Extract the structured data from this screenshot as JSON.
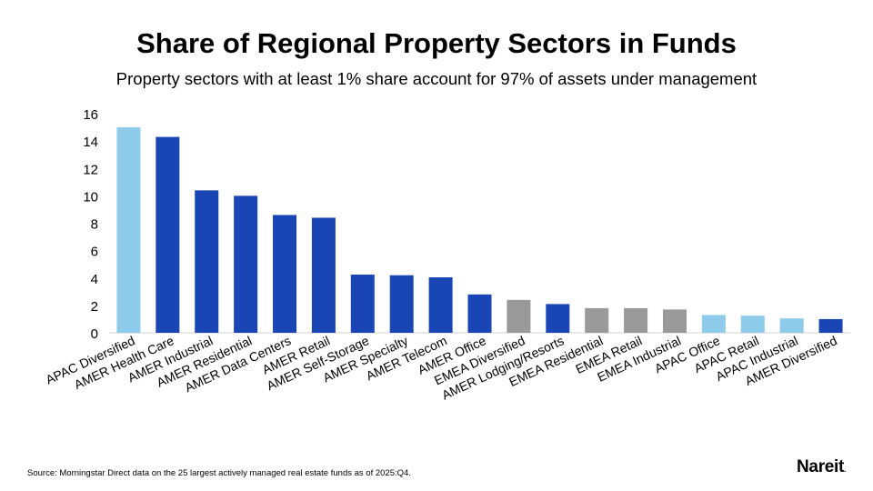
{
  "chart_data": {
    "type": "bar",
    "title": "Share of Regional Property Sectors in Funds",
    "subtitle": "Property sectors with at least 1% share account for 97% of assets under management",
    "categories": [
      "APAC Diversified",
      "AMER Health Care",
      "AMER Industrial",
      "AMER Residential",
      "AMER Data Centers",
      "AMER Retail",
      "AMER Self-Storage",
      "AMER Specialty",
      "AMER Telecom",
      "AMER Office",
      "EMEA Diversified",
      "AMER Lodging/Resorts",
      "EMEA Residential",
      "EMEA Retail",
      "EMEA Industrial",
      "APAC Office",
      "APAC Retail",
      "APAC Industrial",
      "AMER Diversified"
    ],
    "values": [
      15.0,
      14.3,
      10.4,
      10.0,
      8.6,
      8.4,
      4.25,
      4.2,
      4.05,
      2.8,
      2.4,
      2.1,
      1.8,
      1.8,
      1.7,
      1.3,
      1.25,
      1.05,
      1.0
    ],
    "regions": [
      "APAC",
      "AMER",
      "AMER",
      "AMER",
      "AMER",
      "AMER",
      "AMER",
      "AMER",
      "AMER",
      "AMER",
      "EMEA",
      "AMER",
      "EMEA",
      "EMEA",
      "EMEA",
      "APAC",
      "APAC",
      "APAC",
      "AMER"
    ],
    "region_colors": {
      "APAC": "#8ECAE9",
      "AMER": "#1A45B5",
      "EMEA": "#999999"
    },
    "yticks": [
      0,
      2,
      4,
      6,
      8,
      10,
      12,
      14,
      16
    ],
    "ylim": [
      0,
      16
    ],
    "xlabel": "",
    "ylabel": "",
    "grid": false,
    "legend": "none"
  },
  "footer": {
    "source": "Source: Morningstar Direct data on the 25 largest actively managed real estate funds as of 2025:Q4.",
    "logo": "Nareit"
  }
}
